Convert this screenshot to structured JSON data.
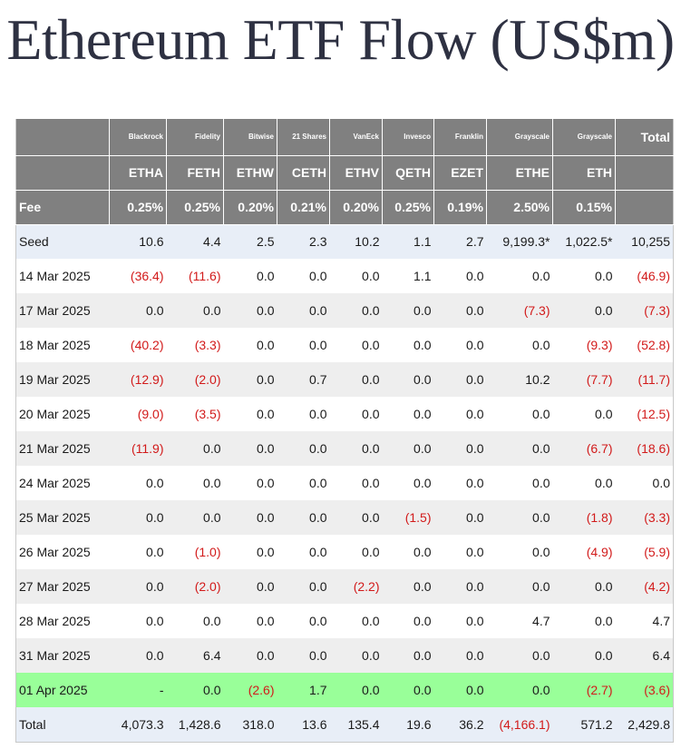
{
  "title": "Ethereum ETF Flow (US$m)",
  "colors": {
    "header_bg": "#808080",
    "negative": "#d21a1a",
    "highlight_row": "#99ff99",
    "seed_total_row": "#e8eef7"
  },
  "columns": [
    {
      "issuer": "Blackrock",
      "ticker": "ETHA",
      "fee": "0.25%"
    },
    {
      "issuer": "Fidelity",
      "ticker": "FETH",
      "fee": "0.25%"
    },
    {
      "issuer": "Bitwise",
      "ticker": "ETHW",
      "fee": "0.20%"
    },
    {
      "issuer": "21 Shares",
      "ticker": "CETH",
      "fee": "0.21%"
    },
    {
      "issuer": "VanEck",
      "ticker": "ETHV",
      "fee": "0.20%"
    },
    {
      "issuer": "Invesco",
      "ticker": "QETH",
      "fee": "0.25%"
    },
    {
      "issuer": "Franklin",
      "ticker": "EZET",
      "fee": "0.19%"
    },
    {
      "issuer": "Grayscale",
      "ticker": "ETHE",
      "fee": "2.50%"
    },
    {
      "issuer": "Grayscale",
      "ticker": "ETH",
      "fee": "0.15%"
    }
  ],
  "total_label": "Total",
  "fee_label": "Fee",
  "rows": [
    {
      "label": "Seed",
      "values": [
        "10.6",
        "4.4",
        "2.5",
        "2.3",
        "10.2",
        "1.1",
        "2.7",
        "9,199.3*",
        "1,022.5*"
      ],
      "total": "10,255"
    },
    {
      "label": "14 Mar 2025",
      "values": [
        "(36.4)",
        "(11.6)",
        "0.0",
        "0.0",
        "0.0",
        "1.1",
        "0.0",
        "0.0",
        "0.0"
      ],
      "total": "(46.9)"
    },
    {
      "label": "17 Mar 2025",
      "values": [
        "0.0",
        "0.0",
        "0.0",
        "0.0",
        "0.0",
        "0.0",
        "0.0",
        "(7.3)",
        "0.0"
      ],
      "total": "(7.3)"
    },
    {
      "label": "18 Mar 2025",
      "values": [
        "(40.2)",
        "(3.3)",
        "0.0",
        "0.0",
        "0.0",
        "0.0",
        "0.0",
        "0.0",
        "(9.3)"
      ],
      "total": "(52.8)"
    },
    {
      "label": "19 Mar 2025",
      "values": [
        "(12.9)",
        "(2.0)",
        "0.0",
        "0.7",
        "0.0",
        "0.0",
        "0.0",
        "10.2",
        "(7.7)"
      ],
      "total": "(11.7)"
    },
    {
      "label": "20 Mar 2025",
      "values": [
        "(9.0)",
        "(3.5)",
        "0.0",
        "0.0",
        "0.0",
        "0.0",
        "0.0",
        "0.0",
        "0.0"
      ],
      "total": "(12.5)"
    },
    {
      "label": "21 Mar 2025",
      "values": [
        "(11.9)",
        "0.0",
        "0.0",
        "0.0",
        "0.0",
        "0.0",
        "0.0",
        "0.0",
        "(6.7)"
      ],
      "total": "(18.6)"
    },
    {
      "label": "24 Mar 2025",
      "values": [
        "0.0",
        "0.0",
        "0.0",
        "0.0",
        "0.0",
        "0.0",
        "0.0",
        "0.0",
        "0.0"
      ],
      "total": "0.0"
    },
    {
      "label": "25 Mar 2025",
      "values": [
        "0.0",
        "0.0",
        "0.0",
        "0.0",
        "0.0",
        "(1.5)",
        "0.0",
        "0.0",
        "(1.8)"
      ],
      "total": "(3.3)"
    },
    {
      "label": "26 Mar 2025",
      "values": [
        "0.0",
        "(1.0)",
        "0.0",
        "0.0",
        "0.0",
        "0.0",
        "0.0",
        "0.0",
        "(4.9)"
      ],
      "total": "(5.9)"
    },
    {
      "label": "27 Mar 2025",
      "values": [
        "0.0",
        "(2.0)",
        "0.0",
        "0.0",
        "(2.2)",
        "0.0",
        "0.0",
        "0.0",
        "0.0"
      ],
      "total": "(4.2)"
    },
    {
      "label": "28 Mar 2025",
      "values": [
        "0.0",
        "0.0",
        "0.0",
        "0.0",
        "0.0",
        "0.0",
        "0.0",
        "4.7",
        "0.0"
      ],
      "total": "4.7"
    },
    {
      "label": "31 Mar 2025",
      "values": [
        "0.0",
        "6.4",
        "0.0",
        "0.0",
        "0.0",
        "0.0",
        "0.0",
        "0.0",
        "0.0"
      ],
      "total": "6.4"
    },
    {
      "label": "01 Apr 2025",
      "values": [
        "-",
        "0.0",
        "(2.6)",
        "1.7",
        "0.0",
        "0.0",
        "0.0",
        "0.0",
        "(2.7)"
      ],
      "total": "(3.6)",
      "highlight": true
    },
    {
      "label": "Total",
      "values": [
        "4,073.3",
        "1,428.6",
        "318.0",
        "13.6",
        "135.4",
        "19.6",
        "36.2",
        "(4,166.1)",
        "571.2"
      ],
      "total": "2,429.8",
      "is_total": true
    }
  ]
}
